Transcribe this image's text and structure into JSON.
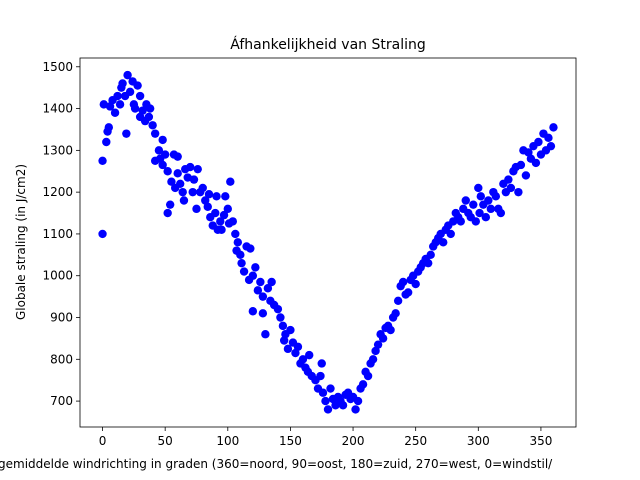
{
  "chart_data": {
    "type": "scatter",
    "title": "Áfhankelijkheid van Straling",
    "x_label": "gemiddelde windrichting in graden (360=noord, 90=oost, 180=zuid, 270=west, 0=windstil/",
    "y_label": "Globale straling (in J/cm2)",
    "color": "#0000ff",
    "xlim": [
      -18,
      378
    ],
    "ylim": [
      638,
      1521
    ],
    "xticks": [
      0,
      50,
      100,
      150,
      200,
      250,
      300,
      350
    ],
    "yticks": [
      700,
      800,
      900,
      1000,
      1100,
      1200,
      1300,
      1400,
      1500
    ],
    "x": [
      0,
      0,
      1,
      3,
      4,
      5,
      6,
      8,
      10,
      12,
      14,
      15,
      16,
      18,
      19,
      20,
      22,
      24,
      25,
      26,
      28,
      30,
      30,
      32,
      34,
      35,
      37,
      38,
      40,
      42,
      42,
      45,
      46,
      48,
      48,
      50,
      52,
      52,
      54,
      55,
      57,
      58,
      60,
      60,
      62,
      64,
      65,
      66,
      68,
      70,
      72,
      73,
      75,
      76,
      78,
      80,
      82,
      84,
      85,
      86,
      88,
      90,
      91,
      92,
      94,
      95,
      97,
      98,
      100,
      101,
      102,
      104,
      106,
      107,
      108,
      110,
      111,
      113,
      115,
      117,
      118,
      120,
      120,
      122,
      124,
      126,
      128,
      128,
      130,
      132,
      134,
      135,
      137,
      140,
      142,
      144,
      145,
      146,
      148,
      150,
      152,
      154,
      156,
      158,
      160,
      162,
      164,
      165,
      167,
      170,
      172,
      174,
      175,
      176,
      178,
      180,
      182,
      184,
      186,
      188,
      190,
      192,
      194,
      196,
      198,
      200,
      202,
      204,
      206,
      208,
      210,
      212,
      214,
      216,
      218,
      220,
      222,
      224,
      226,
      228,
      230,
      232,
      234,
      236,
      238,
      240,
      242,
      244,
      246,
      248,
      250,
      252,
      254,
      256,
      258,
      260,
      262,
      264,
      266,
      268,
      270,
      272,
      274,
      276,
      278,
      280,
      282,
      284,
      286,
      288,
      290,
      292,
      294,
      296,
      298,
      300,
      301,
      302,
      304,
      306,
      308,
      310,
      312,
      314,
      316,
      318,
      320,
      322,
      324,
      326,
      328,
      330,
      332,
      334,
      336,
      338,
      340,
      342,
      344,
      346,
      348,
      350,
      352,
      354,
      356,
      358,
      360
    ],
    "y": [
      1100,
      1275,
      1410,
      1320,
      1345,
      1355,
      1405,
      1420,
      1390,
      1430,
      1410,
      1450,
      1460,
      1430,
      1340,
      1480,
      1440,
      1465,
      1410,
      1400,
      1455,
      1430,
      1380,
      1395,
      1370,
      1410,
      1380,
      1400,
      1360,
      1340,
      1275,
      1300,
      1280,
      1265,
      1325,
      1290,
      1250,
      1150,
      1170,
      1225,
      1290,
      1210,
      1245,
      1285,
      1220,
      1200,
      1180,
      1255,
      1235,
      1260,
      1200,
      1230,
      1160,
      1255,
      1200,
      1210,
      1180,
      1165,
      1195,
      1140,
      1120,
      1150,
      1190,
      1110,
      1130,
      1110,
      1145,
      1190,
      1160,
      1125,
      1225,
      1130,
      1100,
      1060,
      1080,
      1050,
      1030,
      1010,
      1070,
      990,
      1065,
      1000,
      915,
      1020,
      965,
      985,
      950,
      910,
      860,
      970,
      940,
      985,
      930,
      920,
      900,
      880,
      845,
      860,
      825,
      870,
      840,
      815,
      830,
      790,
      800,
      780,
      770,
      810,
      760,
      750,
      730,
      760,
      790,
      720,
      700,
      680,
      730,
      705,
      690,
      710,
      700,
      690,
      715,
      720,
      705,
      710,
      680,
      700,
      730,
      740,
      770,
      760,
      790,
      800,
      820,
      835,
      860,
      850,
      875,
      880,
      870,
      900,
      910,
      940,
      975,
      985,
      955,
      960,
      990,
      1000,
      980,
      1010,
      1020,
      1030,
      1040,
      1030,
      1050,
      1070,
      1080,
      1090,
      1100,
      1080,
      1110,
      1120,
      1100,
      1130,
      1150,
      1140,
      1130,
      1160,
      1180,
      1150,
      1140,
      1170,
      1130,
      1210,
      1150,
      1190,
      1170,
      1140,
      1180,
      1160,
      1200,
      1190,
      1160,
      1150,
      1220,
      1200,
      1230,
      1210,
      1250,
      1260,
      1200,
      1265,
      1300,
      1240,
      1295,
      1280,
      1310,
      1270,
      1320,
      1290,
      1340,
      1300,
      1330,
      1310,
      1355
    ]
  }
}
